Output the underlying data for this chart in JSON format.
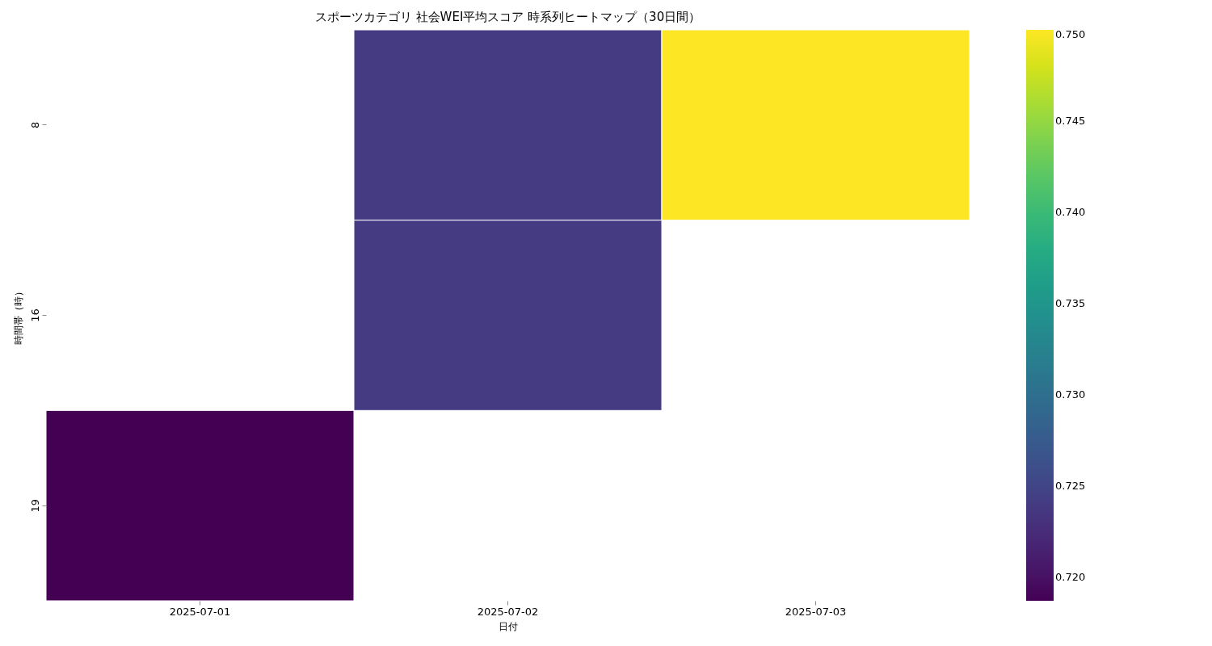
{
  "chart_data": {
    "type": "heatmap",
    "title": "スポーツカテゴリ 社会WEI平均スコア 時系列ヒートマップ（30日間）",
    "xlabel": "日付",
    "ylabel": "時間帯（時）",
    "categories": [
      "2025-07-01",
      "2025-07-02",
      "2025-07-03"
    ],
    "y_categories": [
      "8",
      "16",
      "19"
    ],
    "cells": [
      [
        null,
        0.724,
        0.75
      ],
      [
        null,
        0.724,
        null
      ],
      [
        0.7187,
        null,
        null
      ]
    ],
    "clim": [
      0.7187,
      0.75
    ],
    "cticks": [
      {
        "value": 0.72,
        "label": "0.720"
      },
      {
        "value": 0.725,
        "label": "0.725"
      },
      {
        "value": 0.73,
        "label": "0.730"
      },
      {
        "value": 0.735,
        "label": "0.735"
      },
      {
        "value": 0.74,
        "label": "0.740"
      },
      {
        "value": 0.745,
        "label": "0.745"
      },
      {
        "value": 0.75,
        "label": "0.750"
      }
    ]
  }
}
